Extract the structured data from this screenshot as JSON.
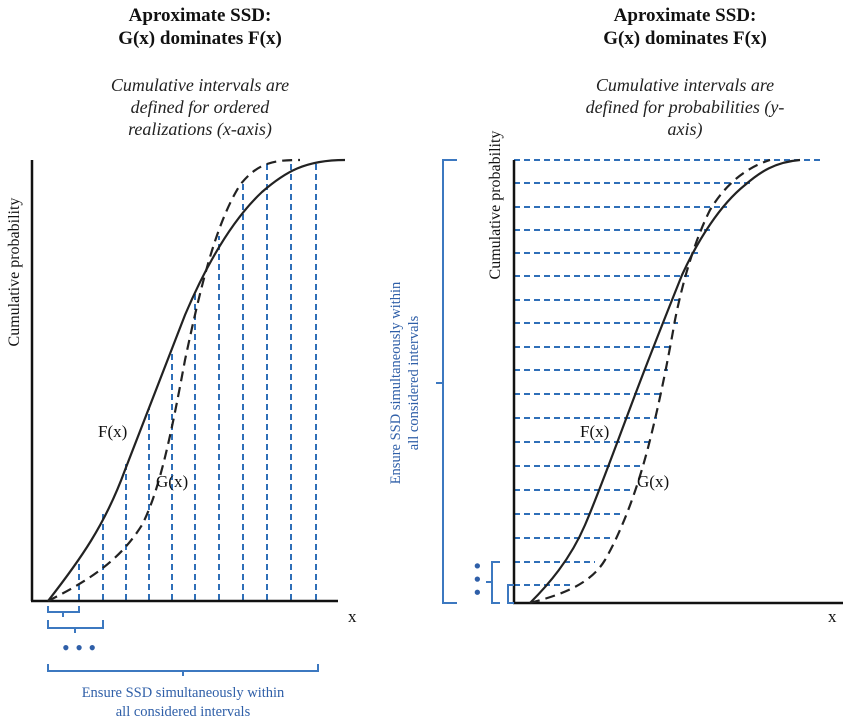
{
  "left_panel": {
    "title_line1": "Aproximate SSD:",
    "title_line2": "G(x) dominates F(x)",
    "subtitle_line1": "Cumulative intervals are",
    "subtitle_line2": "defined for ordered",
    "subtitle_line3": "realizations (x-axis)",
    "ylabel": "Cumulative probability",
    "xlabel": "x",
    "label_F": "F(x)",
    "label_G": "G(x)",
    "dots": "• • •",
    "note_line1": "Ensure SSD simultaneously within",
    "note_line2": "all considered intervals"
  },
  "right_panel": {
    "title_line1": "Aproximate SSD:",
    "title_line2": "G(x) dominates F(x)",
    "subtitle_line1": "Cumulative intervals are",
    "subtitle_line2": "defined for probabilities (y-",
    "subtitle_line3": "axis)",
    "ylabel": "Cumulative probability",
    "xlabel": "x",
    "label_F": "F(x)",
    "label_G": "G(x)",
    "dots": "•  •  •",
    "note_line1": "Ensure SSD simultaneously within",
    "note_line2": "all considered intervals"
  },
  "colors": {
    "axis": "#111111",
    "curve": "#222222",
    "interval": "#2f6fb8",
    "brace": "#3c78c0",
    "note_text": "#2f5fa8"
  }
}
